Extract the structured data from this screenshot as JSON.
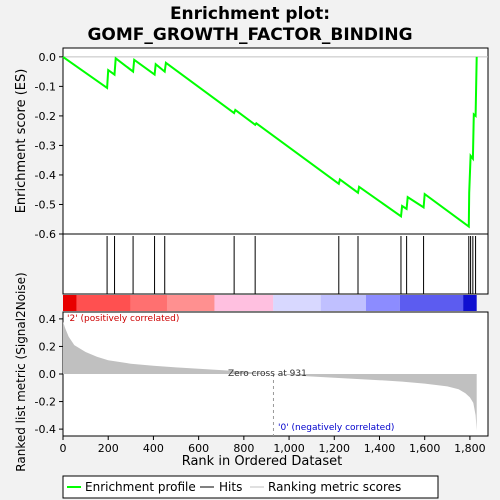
{
  "chart_data": {
    "type": "line",
    "title_line1": "Enrichment plot:",
    "title_line2": "GOMF_GROWTH_FACTOR_BINDING",
    "es_panel": {
      "ylabel": "Enrichment score (ES)",
      "ylim": [
        -0.6,
        0.03
      ],
      "yticks": [
        0.0,
        -0.1,
        -0.2,
        -0.3,
        -0.4,
        -0.5,
        -0.6
      ],
      "ytick_labels": [
        "0.0",
        "-0.1",
        "-0.2",
        "-0.3",
        "-0.4",
        "-0.5",
        "-0.6"
      ],
      "profile_color": "#00ff00",
      "profile": [
        [
          0,
          0.0
        ],
        [
          195,
          -0.105
        ],
        [
          200,
          -0.045
        ],
        [
          228,
          -0.06
        ],
        [
          233,
          -0.005
        ],
        [
          310,
          -0.05
        ],
        [
          315,
          -0.01
        ],
        [
          405,
          -0.06
        ],
        [
          410,
          -0.025
        ],
        [
          450,
          -0.05
        ],
        [
          455,
          -0.02
        ],
        [
          757,
          -0.19
        ],
        [
          762,
          -0.18
        ],
        [
          850,
          -0.23
        ],
        [
          855,
          -0.225
        ],
        [
          1220,
          -0.43
        ],
        [
          1225,
          -0.415
        ],
        [
          1305,
          -0.46
        ],
        [
          1310,
          -0.44
        ],
        [
          1495,
          -0.54
        ],
        [
          1500,
          -0.505
        ],
        [
          1520,
          -0.515
        ],
        [
          1525,
          -0.475
        ],
        [
          1595,
          -0.51
        ],
        [
          1600,
          -0.465
        ],
        [
          1795,
          -0.575
        ],
        [
          1797,
          -0.46
        ],
        [
          1803,
          -0.335
        ],
        [
          1813,
          -0.345
        ],
        [
          1817,
          -0.195
        ],
        [
          1825,
          -0.2
        ],
        [
          1830,
          0.0
        ]
      ]
    },
    "hits": [
      195,
      228,
      310,
      405,
      450,
      757,
      850,
      1220,
      1305,
      1495,
      1520,
      1595,
      1795,
      1803,
      1813,
      1825
    ],
    "metric_panel": {
      "ylabel": "Ranked list metric (Signal2Noise)",
      "ylim": [
        -0.45,
        0.45
      ],
      "yticks": [
        0.4,
        0.2,
        0.0,
        -0.2,
        -0.4
      ],
      "ytick_labels": [
        "0.4",
        "0.2",
        "0.0",
        "-0.2",
        "-0.4"
      ],
      "metric_curve": [
        [
          0,
          0.38
        ],
        [
          10,
          0.33
        ],
        [
          25,
          0.27
        ],
        [
          50,
          0.21
        ],
        [
          100,
          0.16
        ],
        [
          150,
          0.125
        ],
        [
          200,
          0.1
        ],
        [
          300,
          0.075
        ],
        [
          400,
          0.06
        ],
        [
          500,
          0.048
        ],
        [
          600,
          0.038
        ],
        [
          700,
          0.028
        ],
        [
          800,
          0.018
        ],
        [
          900,
          0.006
        ],
        [
          931,
          0.0
        ],
        [
          1000,
          -0.008
        ],
        [
          1100,
          -0.018
        ],
        [
          1200,
          -0.027
        ],
        [
          1300,
          -0.036
        ],
        [
          1400,
          -0.045
        ],
        [
          1500,
          -0.055
        ],
        [
          1600,
          -0.07
        ],
        [
          1700,
          -0.09
        ],
        [
          1750,
          -0.11
        ],
        [
          1780,
          -0.14
        ],
        [
          1800,
          -0.17
        ],
        [
          1815,
          -0.21
        ],
        [
          1825,
          -0.3
        ],
        [
          1830,
          -0.41
        ]
      ],
      "positive_label": "'2' (positively correlated)",
      "negative_label": "'0' (negatively correlated)",
      "zero_cross_label": "Zero cross at 931",
      "zero_cross": 931,
      "positive_color": "#cc0000",
      "negative_color": "#0000cc"
    },
    "xlabel": "Rank in Ordered Dataset",
    "xlim": [
      0,
      1880
    ],
    "xticks": [
      0,
      200,
      400,
      600,
      800,
      1000,
      1200,
      1400,
      1600,
      1800
    ],
    "xtick_labels": [
      "0",
      "200",
      "400",
      "600",
      "800",
      "1,000",
      "1,200",
      "1,400",
      "1,600",
      "1,800"
    ],
    "heat_bands": [
      [
        0,
        60,
        "#e80000"
      ],
      [
        60,
        300,
        "#ff5050"
      ],
      [
        300,
        460,
        "#ff7070"
      ],
      [
        460,
        670,
        "#ff9090"
      ],
      [
        670,
        930,
        "#ffc0e0"
      ],
      [
        930,
        1140,
        "#d8d8ff"
      ],
      [
        1140,
        1340,
        "#c0c0ff"
      ],
      [
        1340,
        1490,
        "#8c8cff"
      ],
      [
        1490,
        1770,
        "#5c5cf0"
      ],
      [
        1770,
        1830,
        "#1010d0"
      ]
    ],
    "legend": [
      {
        "label": "Enrichment profile",
        "color": "#00ff00"
      },
      {
        "label": "Hits",
        "color": "#000000"
      },
      {
        "label": "Ranking metric scores",
        "color": "#c0c0c0"
      }
    ]
  }
}
